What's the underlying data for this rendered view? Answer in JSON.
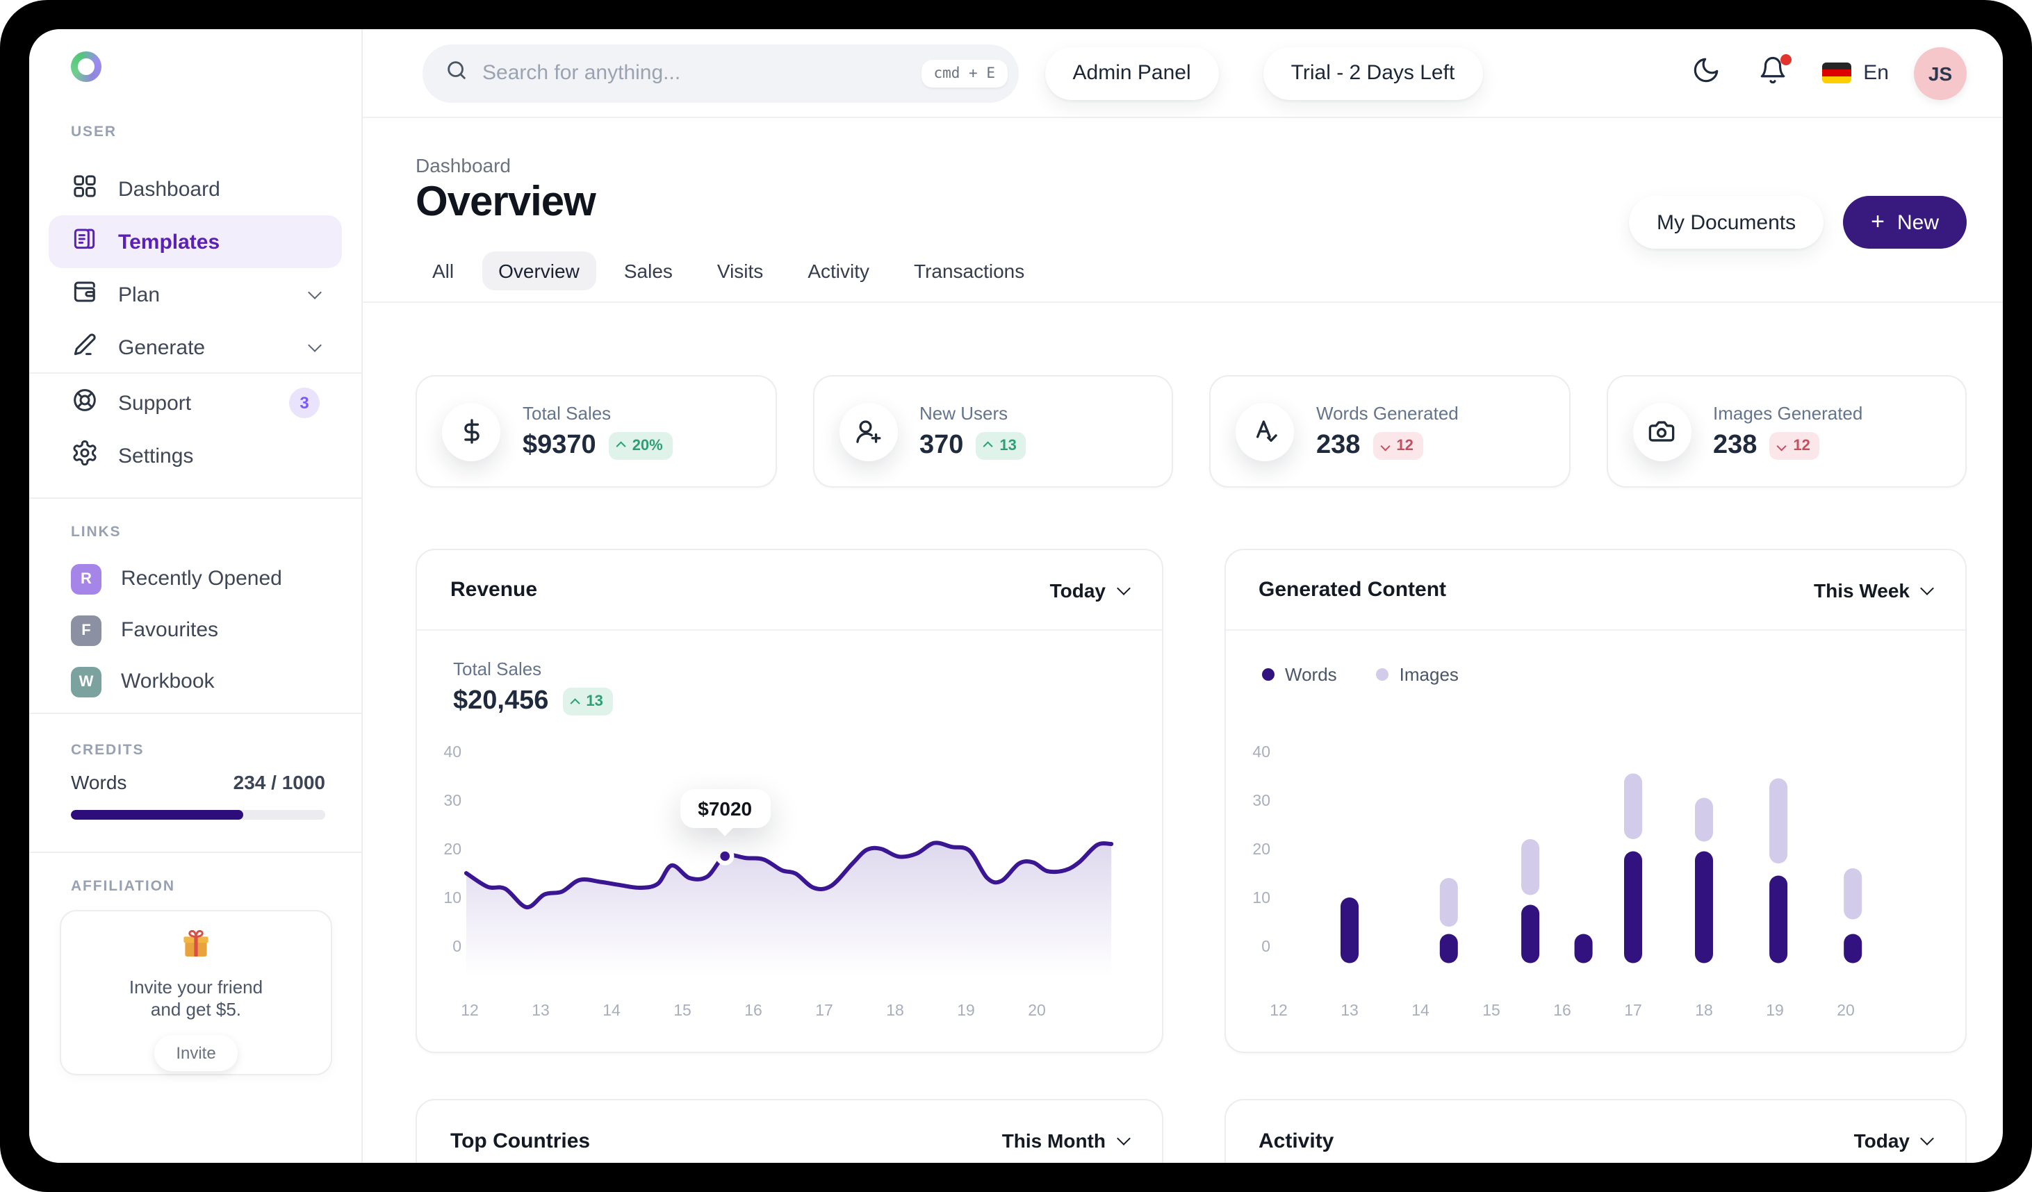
{
  "colors": {
    "accent_deep_purple": "#38197d",
    "bar_dark": "#31127e",
    "bar_light": "#d2cbe9",
    "line_stroke": "#3a1692",
    "progress_fill": "#2d0d7c",
    "active_nav_text": "#5b21b6",
    "active_nav_bg": "#f2eefb",
    "trend_up_bg": "#e0f3eb",
    "trend_up_text": "#2f9e77",
    "trend_down_bg": "#fbe7ea",
    "trend_down_text": "#c2505e",
    "avatar_bg": "#f6c7ca"
  },
  "sidebar": {
    "user_label": "USER",
    "items": [
      {
        "label": "Dashboard",
        "icon": "grid-icon",
        "active": false,
        "chevron": false
      },
      {
        "label": "Templates",
        "icon": "templates-icon",
        "active": true,
        "chevron": false
      },
      {
        "label": "Plan",
        "icon": "wallet-icon",
        "active": false,
        "chevron": true
      },
      {
        "label": "Generate",
        "icon": "pencil-icon",
        "active": false,
        "chevron": true
      }
    ],
    "support": {
      "label": "Support",
      "badge": "3"
    },
    "settings_label": "Settings",
    "links_label": "LINKS",
    "links": [
      {
        "initial": "R",
        "label": "Recently Opened",
        "badge_color": "#a685e8"
      },
      {
        "initial": "F",
        "label": "Favourites",
        "badge_color": "#8b90a3"
      },
      {
        "initial": "W",
        "label": "Workbook",
        "badge_color": "#7ba29e"
      }
    ],
    "credits_label": "CREDITS",
    "credits": {
      "label": "Words",
      "value": "234 / 1000",
      "percent": 68
    },
    "affiliation_label": "AFFILIATION",
    "affiliation": {
      "line1": "Invite your friend",
      "line2": "and get $5.",
      "button": "Invite"
    }
  },
  "topbar": {
    "search": {
      "placeholder": "Search for anything...",
      "shortcut": "cmd + E"
    },
    "admin_button": "Admin Panel",
    "trial_button": "Trial - 2 Days Left",
    "language": "En",
    "avatar_initials": "JS"
  },
  "header": {
    "breadcrumb": "Dashboard",
    "title": "Overview",
    "tabs": [
      {
        "label": "All",
        "active": false
      },
      {
        "label": "Overview",
        "active": true
      },
      {
        "label": "Sales",
        "active": false
      },
      {
        "label": "Visits",
        "active": false
      },
      {
        "label": "Activity",
        "active": false
      },
      {
        "label": "Transactions",
        "active": false
      }
    ],
    "my_documents_button": "My Documents",
    "new_button": {
      "plus": "+",
      "label": "New"
    }
  },
  "stats": [
    {
      "title": "Total Sales",
      "value": "$9370",
      "trend": "20%",
      "direction": "up",
      "icon": "dollar-icon"
    },
    {
      "title": "New Users",
      "value": "370",
      "trend": "13",
      "direction": "up",
      "icon": "user-plus-icon"
    },
    {
      "title": "Words Generated",
      "value": "238",
      "trend": "12",
      "direction": "down",
      "icon": "spellcheck-icon"
    },
    {
      "title": "Images Generated",
      "value": "238",
      "trend": "12",
      "direction": "down",
      "icon": "camera-icon"
    }
  ],
  "bottom_cards": [
    {
      "title": "Top Countries",
      "period": "This Month"
    },
    {
      "title": "Activity",
      "period": "Today"
    }
  ],
  "chart_data": [
    {
      "type": "line",
      "title": "Revenue",
      "period": "Today",
      "metric_label": "Total Sales",
      "metric_value": "$20,456",
      "metric_trend": "13",
      "metric_trend_direction": "up",
      "ylim": [
        0,
        40
      ],
      "y_ticks": [
        0,
        10,
        20,
        30,
        40
      ],
      "x_ticks": [
        12,
        13,
        14,
        15,
        16,
        17,
        18,
        19,
        20
      ],
      "grid": false,
      "tooltip": {
        "x": 15.6,
        "y": 18.5,
        "label": "$7020"
      },
      "points": [
        [
          11.95,
          15
        ],
        [
          12.25,
          12.2
        ],
        [
          12.5,
          11.8
        ],
        [
          12.8,
          8
        ],
        [
          13.05,
          10.6
        ],
        [
          13.3,
          11.2
        ],
        [
          13.55,
          13.6
        ],
        [
          13.85,
          13.2
        ],
        [
          14.1,
          12.6
        ],
        [
          14.4,
          12
        ],
        [
          14.65,
          12.8
        ],
        [
          14.85,
          16.6
        ],
        [
          15.1,
          14
        ],
        [
          15.35,
          14.3
        ],
        [
          15.6,
          18.5
        ],
        [
          15.9,
          18.1
        ],
        [
          16.15,
          17.8
        ],
        [
          16.4,
          15.6
        ],
        [
          16.6,
          14.9
        ],
        [
          16.85,
          12
        ],
        [
          17.1,
          12.4
        ],
        [
          17.4,
          17
        ],
        [
          17.6,
          19.8
        ],
        [
          17.8,
          20
        ],
        [
          18.05,
          18.4
        ],
        [
          18.3,
          19
        ],
        [
          18.55,
          21.2
        ],
        [
          18.8,
          20.4
        ],
        [
          19.05,
          19.6
        ],
        [
          19.3,
          14
        ],
        [
          19.5,
          13.4
        ],
        [
          19.75,
          17
        ],
        [
          19.95,
          17.2
        ],
        [
          20.15,
          15.4
        ],
        [
          20.4,
          15.6
        ],
        [
          20.6,
          17.3
        ],
        [
          20.85,
          20.8
        ],
        [
          21.05,
          21
        ]
      ]
    },
    {
      "type": "bar",
      "title": "Generated Content",
      "period": "This Week",
      "legend": [
        {
          "label": "Words",
          "color": "#31127e"
        },
        {
          "label": "Images",
          "color": "#d2cbe9"
        }
      ],
      "ylim": [
        0,
        40
      ],
      "y_ticks": [
        0,
        10,
        20,
        30,
        40
      ],
      "x_ticks": [
        12,
        13,
        14,
        15,
        16,
        17,
        18,
        19,
        20
      ],
      "grid": false,
      "bars": [
        {
          "x": 13.0,
          "words": [
            -3.5,
            10
          ],
          "images": null
        },
        {
          "x": 14.4,
          "words": [
            -3.5,
            2.5
          ],
          "images": [
            4,
            14
          ]
        },
        {
          "x": 15.55,
          "words": [
            -3.5,
            8.5
          ],
          "images": [
            10.5,
            22
          ]
        },
        {
          "x": 16.3,
          "words": [
            -3.5,
            2.5
          ],
          "images": null
        },
        {
          "x": 17.0,
          "words": [
            -3.5,
            19.5
          ],
          "images": [
            22,
            35.5
          ]
        },
        {
          "x": 18.0,
          "words": [
            -3.5,
            19.5
          ],
          "images": [
            21.5,
            30.5
          ]
        },
        {
          "x": 19.05,
          "words": [
            -3.5,
            14.5
          ],
          "images": [
            17,
            34.5
          ]
        },
        {
          "x": 20.1,
          "words": [
            -3.5,
            2.5
          ],
          "images": [
            5.5,
            16
          ]
        }
      ]
    }
  ]
}
